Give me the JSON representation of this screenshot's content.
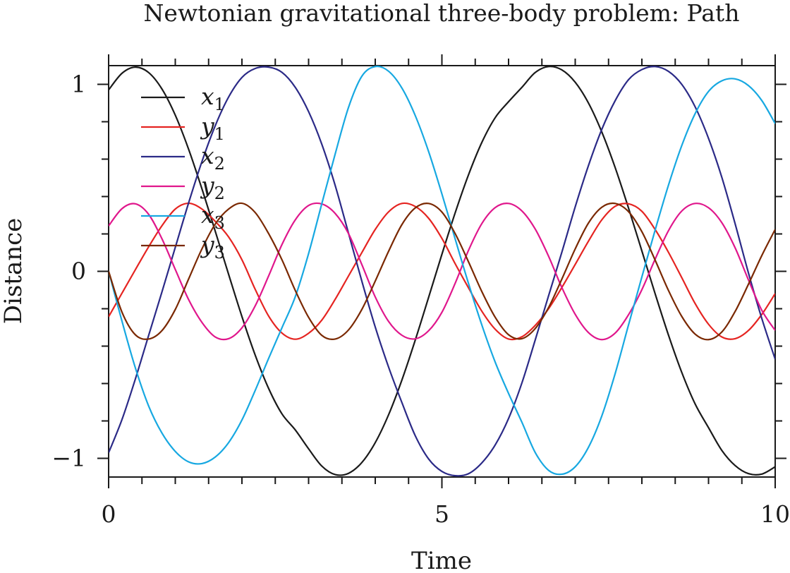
{
  "chart_data": {
    "type": "line",
    "title": "Newtonian gravitational three-body problem: Path",
    "xlabel": "Time",
    "ylabel": "Distance",
    "xlim": [
      0,
      10
    ],
    "ylim": [
      -1.1,
      1.1
    ],
    "x_ticks": [
      {
        "value": 0,
        "label": "0"
      },
      {
        "value": 5,
        "label": "5"
      },
      {
        "value": 10,
        "label": "10"
      }
    ],
    "y_ticks": [
      {
        "value": -1,
        "label": "−1"
      },
      {
        "value": 0,
        "label": "0"
      },
      {
        "value": 1,
        "label": "1"
      }
    ],
    "grid": false,
    "legend_position": "top-left",
    "x": [
      0,
      0.2,
      0.4,
      0.6,
      0.8,
      1.0,
      1.2,
      1.4,
      1.6,
      1.8,
      2.0,
      2.2,
      2.4,
      2.6,
      2.8,
      3.0,
      3.2,
      3.4,
      3.6,
      3.8,
      4.0,
      4.2,
      4.4,
      4.6,
      4.8,
      5.0,
      5.2,
      5.4,
      5.6,
      5.8,
      6.0,
      6.2,
      6.4,
      6.6,
      6.8,
      7.0,
      7.2,
      7.4,
      7.6,
      7.8,
      8.0,
      8.2,
      8.4,
      8.6,
      8.8,
      9.0,
      9.2,
      9.4,
      9.6,
      9.8,
      10.0
    ],
    "series": [
      {
        "name": "x1",
        "base": "x",
        "sub": "1",
        "color": "#1a1a1a",
        "values": [
          0.97,
          1.059,
          1.092,
          1.063,
          0.975,
          0.835,
          0.653,
          0.441,
          0.214,
          -0.016,
          -0.242,
          -0.449,
          -0.626,
          -0.762,
          -0.848,
          -0.949,
          -1.042,
          -1.087,
          -1.08,
          -1.022,
          -0.916,
          -0.767,
          -0.581,
          -0.368,
          -0.14,
          0.091,
          0.314,
          0.517,
          0.69,
          0.822,
          0.907,
          0.984,
          1.063,
          1.095,
          1.077,
          1.011,
          0.899,
          0.744,
          0.554,
          0.338,
          0.109,
          -0.121,
          -0.342,
          -0.542,
          -0.71,
          -0.836,
          -0.958,
          -1.039,
          -1.082,
          -1.084,
          -1.045
        ]
      },
      {
        "name": "y1",
        "base": "y",
        "sub": "1",
        "color": "#e52421",
        "values": [
          -0.243,
          -0.117,
          0.008,
          0.131,
          0.244,
          0.333,
          0.364,
          0.333,
          0.267,
          0.184,
          0.062,
          -0.097,
          -0.239,
          -0.33,
          -0.363,
          -0.331,
          -0.26,
          -0.149,
          -0.024,
          0.101,
          0.224,
          0.318,
          0.363,
          0.347,
          0.284,
          0.176,
          0.04,
          -0.089,
          -0.214,
          -0.31,
          -0.362,
          -0.35,
          -0.289,
          -0.2,
          -0.086,
          0.037,
          0.162,
          0.276,
          0.348,
          0.361,
          0.321,
          0.223,
          0.101,
          -0.035,
          -0.173,
          -0.283,
          -0.351,
          -0.36,
          -0.316,
          -0.23,
          -0.119
        ]
      },
      {
        "name": "x2",
        "base": "x",
        "sub": "2",
        "color": "#2b2a87",
        "values": [
          -0.97,
          -0.793,
          -0.577,
          -0.343,
          -0.11,
          0.128,
          0.366,
          0.587,
          0.779,
          0.932,
          1.037,
          1.085,
          1.092,
          1.064,
          0.984,
          0.854,
          0.678,
          0.458,
          0.202,
          -0.054,
          -0.298,
          -0.512,
          -0.702,
          -0.879,
          -1.003,
          -1.07,
          -1.093,
          -1.082,
          -1.024,
          -0.928,
          -0.787,
          -0.597,
          -0.367,
          -0.131,
          0.103,
          0.345,
          0.567,
          0.76,
          0.913,
          1.025,
          1.079,
          1.095,
          1.069,
          0.999,
          0.879,
          0.711,
          0.502,
          0.253,
          -0.01,
          -0.253,
          -0.47
        ]
      },
      {
        "name": "y2",
        "base": "y",
        "sub": "2",
        "color": "#e0178c",
        "values": [
          0.243,
          0.335,
          0.361,
          0.305,
          0.174,
          0.01,
          -0.151,
          -0.273,
          -0.351,
          -0.36,
          -0.302,
          -0.184,
          -0.025,
          0.143,
          0.275,
          0.352,
          0.36,
          0.309,
          0.201,
          0.035,
          -0.137,
          -0.268,
          -0.342,
          -0.361,
          -0.318,
          -0.219,
          -0.063,
          0.113,
          0.256,
          0.341,
          0.363,
          0.323,
          0.226,
          0.081,
          -0.087,
          -0.23,
          -0.328,
          -0.365,
          -0.33,
          -0.232,
          -0.098,
          0.066,
          0.218,
          0.323,
          0.363,
          0.34,
          0.26,
          0.125,
          -0.047,
          -0.209,
          -0.316
        ]
      },
      {
        "name": "x3",
        "base": "x",
        "sub": "3",
        "color": "#17a8e1",
        "values": [
          0.0,
          -0.266,
          -0.515,
          -0.72,
          -0.865,
          -0.963,
          -1.019,
          -1.028,
          -0.993,
          -0.916,
          -0.795,
          -0.636,
          -0.466,
          -0.302,
          -0.136,
          0.095,
          0.364,
          0.629,
          0.878,
          1.044,
          1.095,
          1.07,
          0.98,
          0.833,
          0.641,
          0.414,
          0.172,
          -0.066,
          -0.288,
          -0.486,
          -0.653,
          -0.807,
          -0.969,
          -1.064,
          -1.085,
          -1.045,
          -0.94,
          -0.772,
          -0.546,
          -0.286,
          -0.03,
          0.222,
          0.462,
          0.674,
          0.844,
          0.962,
          1.019,
          1.029,
          0.993,
          0.913,
          0.79
        ]
      },
      {
        "name": "y3",
        "base": "y",
        "sub": "3",
        "color": "#7a2800",
        "values": [
          0.0,
          -0.218,
          -0.339,
          -0.362,
          -0.317,
          -0.204,
          -0.041,
          0.12,
          0.253,
          0.333,
          0.364,
          0.314,
          0.202,
          0.062,
          -0.102,
          -0.246,
          -0.343,
          -0.362,
          -0.313,
          -0.203,
          -0.052,
          0.107,
          0.25,
          0.339,
          0.363,
          0.317,
          0.201,
          0.05,
          -0.109,
          -0.246,
          -0.339,
          -0.36,
          -0.306,
          -0.194,
          -0.041,
          0.12,
          0.259,
          0.343,
          0.363,
          0.319,
          0.212,
          0.059,
          -0.103,
          -0.242,
          -0.336,
          -0.365,
          -0.324,
          -0.214,
          -0.068,
          0.085,
          0.224
        ]
      }
    ]
  }
}
